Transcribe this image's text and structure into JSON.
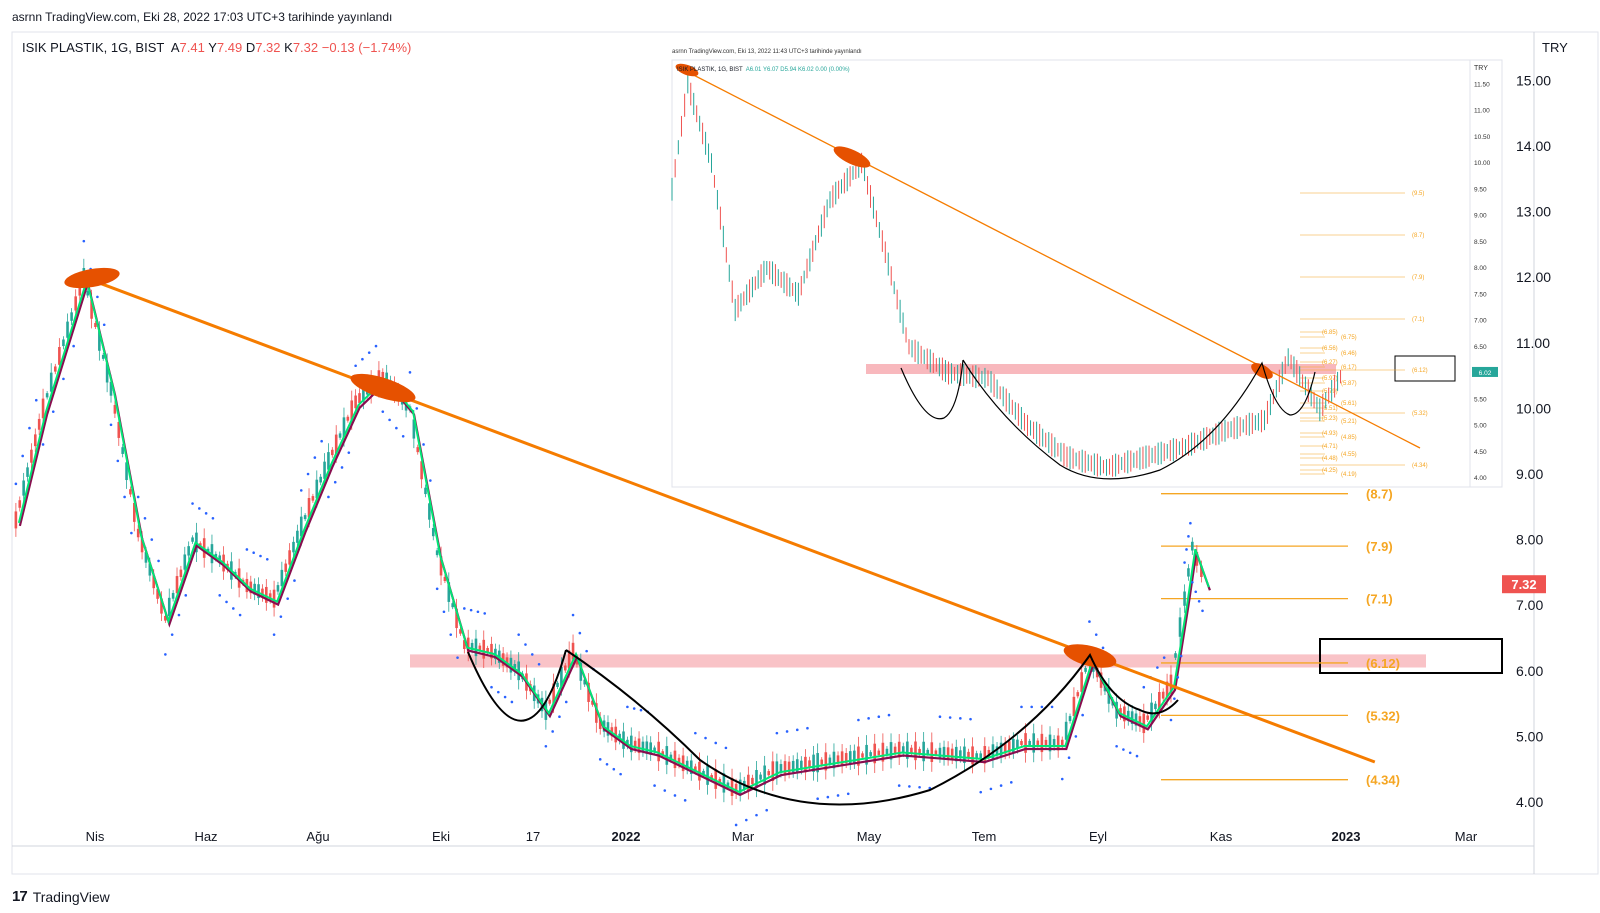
{
  "published": "asrnn TradingView.com, Eki 28, 2022 17:03 UTC+3 tarihinde yayınlandı",
  "legend": {
    "symbol": "ISIK PLASTIK, 1G, BIST",
    "open_label": "A",
    "open": "7.41",
    "high_label": "Y",
    "high": "7.49",
    "low_label": "D",
    "low": "7.32",
    "close_label": "K",
    "close": "7.32",
    "change": "−0.13 (−1.74%)"
  },
  "footer": {
    "brand": "TradingView",
    "logo": "17"
  },
  "colors": {
    "up": "#26a69a",
    "down": "#ef5350",
    "trendline": "#f57c00",
    "fib": "#f5a623",
    "zone": "#f8b8bd",
    "ema_fast": "#00e676",
    "ema_slow": "#880e4f",
    "psar": "#2962ff",
    "highlight": "#e65100",
    "cup": "#000000",
    "price_tag": "#ef5350"
  },
  "chart_data": [
    {
      "type": "line",
      "subtype": "candlestick",
      "title": "ISIK PLASTIK, 1G, BIST",
      "ylabel": "TRY",
      "ylim": [
        3.8,
        15.3
      ],
      "y_ticks": [
        "15.00",
        "14.00",
        "13.00",
        "12.00",
        "11.00",
        "10.00",
        "9.00",
        "8.00",
        "7.00",
        "6.00",
        "5.00",
        "4.00"
      ],
      "x_ticks": [
        "Nis",
        "Haz",
        "Ağu",
        "Eki",
        "17",
        "2022",
        "Mar",
        "May",
        "Tem",
        "Eyl",
        "Kas",
        "2023",
        "Mar"
      ],
      "x_range": [
        "2021-02-20",
        "2023-04-15"
      ],
      "last_price": "7.32",
      "fib_levels": [
        {
          "label": "(8.7)",
          "value": 8.7
        },
        {
          "label": "(7.9)",
          "value": 7.9
        },
        {
          "label": "(7.1)",
          "value": 7.1
        },
        {
          "label": "(6.12)",
          "value": 6.12
        },
        {
          "label": "(5.32)",
          "value": 5.32
        },
        {
          "label": "(4.34)",
          "value": 4.34
        }
      ],
      "resistance_zone": [
        6.05,
        6.25
      ],
      "trendline": [
        {
          "date": "2021-03-29",
          "price": 12.0
        },
        {
          "date": "2023-01-23",
          "price": 4.61
        }
      ],
      "series": [
        {
          "name": "",
          "points": [
            [
              "2021-02-22",
              8.3
            ],
            [
              "2021-03-08",
              10.0
            ],
            [
              "2021-03-29",
              12.0
            ],
            [
              "2021-04-12",
              10.3
            ],
            [
              "2021-04-26",
              8.1
            ],
            [
              "2021-05-10",
              6.8
            ],
            [
              "2021-05-24",
              8.0
            ],
            [
              "2021-06-07",
              7.7
            ],
            [
              "2021-06-21",
              7.3
            ],
            [
              "2021-07-05",
              7.1
            ],
            [
              "2021-07-19",
              8.2
            ],
            [
              "2021-08-02",
              9.2
            ],
            [
              "2021-08-16",
              10.1
            ],
            [
              "2021-08-30",
              10.5
            ],
            [
              "2021-09-13",
              10.0
            ],
            [
              "2021-09-27",
              7.8
            ],
            [
              "2021-10-11",
              6.4
            ],
            [
              "2021-10-25",
              6.3
            ],
            [
              "2021-11-08",
              6.0
            ],
            [
              "2021-11-22",
              5.4
            ],
            [
              "2021-12-06",
              6.3
            ],
            [
              "2021-12-20",
              5.2
            ],
            [
              "2022-01-03",
              4.9
            ],
            [
              "2022-01-17",
              4.8
            ],
            [
              "2022-02-07",
              4.5
            ],
            [
              "2022-02-28",
              4.2
            ],
            [
              "2022-03-21",
              4.5
            ],
            [
              "2022-04-11",
              4.6
            ],
            [
              "2022-05-02",
              4.7
            ],
            [
              "2022-05-23",
              4.8
            ],
            [
              "2022-06-13",
              4.75
            ],
            [
              "2022-07-04",
              4.7
            ],
            [
              "2022-07-25",
              4.9
            ],
            [
              "2022-08-15",
              4.9
            ],
            [
              "2022-08-29",
              6.2
            ],
            [
              "2022-09-12",
              5.4
            ],
            [
              "2022-09-26",
              5.2
            ],
            [
              "2022-10-10",
              5.8
            ],
            [
              "2022-10-17",
              7.1
            ],
            [
              "2022-10-21",
              7.9
            ],
            [
              "2022-10-28",
              7.32
            ]
          ]
        }
      ]
    },
    {
      "type": "line",
      "subtype": "candlestick",
      "title": "ISIK PLASTIK, 1G, BIST",
      "published": "asrnn TradingView.com, Eki 13, 2022 11:43 UTC+3 tarihinde yayınlandı",
      "legend": "A6.01 Y6.07 D5.94 K6.02 0.00 (0.00%)",
      "ylabel": "TRY",
      "ylim": [
        4.0,
        11.6
      ],
      "y_ticks": [
        "11.50",
        "11.00",
        "10.50",
        "10.00",
        "9.50",
        "9.00",
        "8.50",
        "8.00",
        "7.50",
        "7.00",
        "6.50",
        "6.00",
        "5.50",
        "5.00",
        "4.50",
        "4.00"
      ],
      "last_price": "6.02",
      "fib_levels": [
        "(9.5)",
        "(8.7)",
        "(7.9)",
        "(7.1)",
        "(6.85)",
        "(6.75)",
        "(6.56)",
        "(6.46)",
        "(6.27)",
        "(6.17)",
        "(5.97)",
        "(5.87)",
        "(5.79)",
        "(5.61)",
        "(5.51)",
        "(5.32)",
        "(5.23)",
        "(5.21)",
        "(4.93)",
        "(4.85)",
        "(4.71)",
        "(4.55)",
        "(4.48)",
        "(4.34)",
        "(4.25)",
        "(4.19)",
        "(6.12)"
      ],
      "series": [
        {
          "name": "",
          "points": [
            [
              0,
              9.5
            ],
            [
              0.02,
              11.5
            ],
            [
              0.05,
              10.0
            ],
            [
              0.08,
              7.2
            ],
            [
              0.12,
              8.0
            ],
            [
              0.16,
              7.5
            ],
            [
              0.2,
              9.3
            ],
            [
              0.24,
              10.0
            ],
            [
              0.27,
              8.3
            ],
            [
              0.3,
              6.5
            ],
            [
              0.35,
              6.0
            ],
            [
              0.4,
              5.9
            ],
            [
              0.45,
              5.0
            ],
            [
              0.5,
              4.4
            ],
            [
              0.55,
              4.2
            ],
            [
              0.6,
              4.4
            ],
            [
              0.65,
              4.6
            ],
            [
              0.7,
              4.9
            ],
            [
              0.75,
              5.1
            ],
            [
              0.78,
              6.3
            ],
            [
              0.82,
              5.3
            ],
            [
              0.85,
              6.02
            ]
          ]
        }
      ]
    }
  ]
}
